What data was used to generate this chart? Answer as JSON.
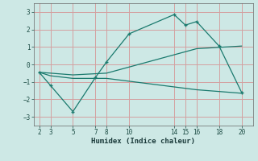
{
  "xlabel": "Humidex (Indice chaleur)",
  "background_color": "#cde8e5",
  "grid_color": "#d4a0a0",
  "line_color": "#1a7a6e",
  "xlim": [
    1.5,
    21
  ],
  "ylim": [
    -3.5,
    3.5
  ],
  "xticks": [
    2,
    3,
    5,
    7,
    8,
    10,
    14,
    15,
    16,
    18,
    20
  ],
  "yticks": [
    -3,
    -2,
    -1,
    0,
    1,
    2,
    3
  ],
  "series1_x": [
    2,
    3,
    5,
    7,
    8,
    10,
    14,
    15,
    16,
    18,
    20
  ],
  "series1_y": [
    -0.45,
    -1.2,
    -2.7,
    -0.75,
    0.15,
    1.75,
    2.85,
    2.25,
    2.45,
    1.05,
    -1.6
  ],
  "series2_x": [
    2,
    3,
    5,
    8,
    16,
    20
  ],
  "series2_y": [
    -0.45,
    -0.5,
    -0.6,
    -0.5,
    0.9,
    1.05
  ],
  "series3_x": [
    2,
    3,
    5,
    8,
    16,
    20
  ],
  "series3_y": [
    -0.45,
    -0.65,
    -0.8,
    -0.8,
    -1.45,
    -1.65
  ]
}
